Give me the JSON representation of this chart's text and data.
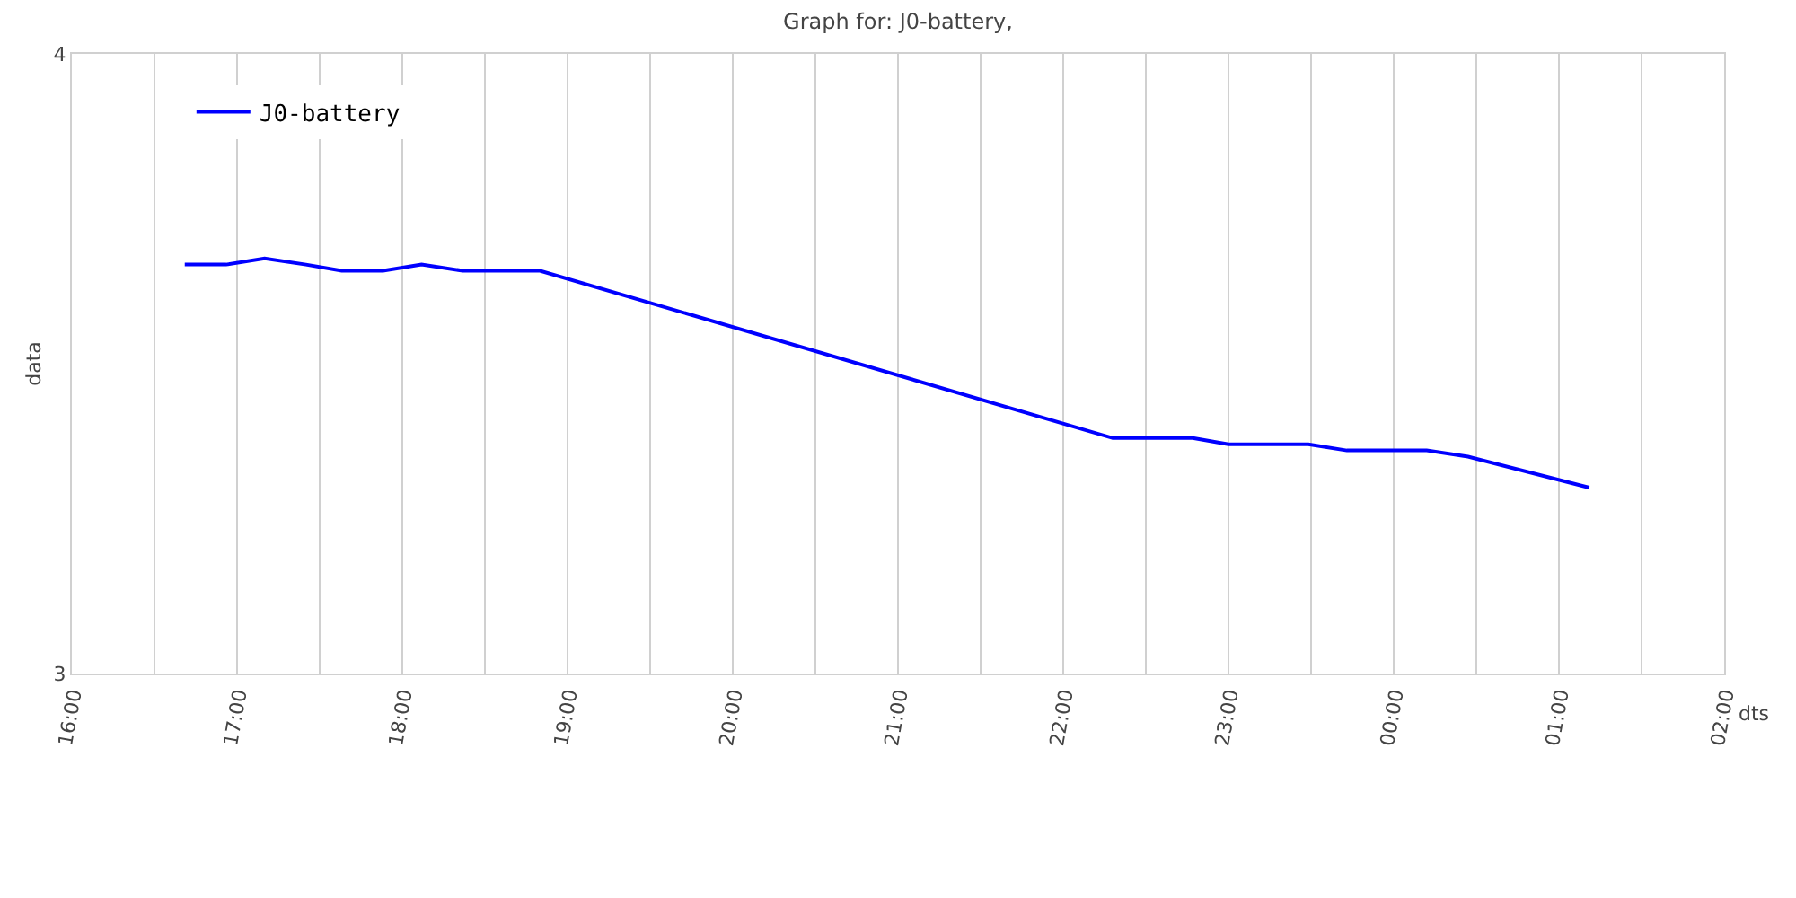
{
  "chart_data": {
    "type": "line",
    "title": "Graph for: J0-battery,",
    "xlabel": "dts",
    "ylabel": "data",
    "x": [
      "--01-01T16:41",
      "--01-01T16:56",
      "--01-01T17:10",
      "--01-01T17:25",
      "--01-01T17:38",
      "--01-01T17:53",
      "--01-01T18:07",
      "--01-01T18:22",
      "--01-01T18:50",
      "--01-01T22:18",
      "--01-01T22:47",
      "--01-01T23:00",
      "--01-01T23:29",
      "--01-01T23:43",
      "--01-02T00:12",
      "--01-02T00:27",
      "--01-02T01:11"
    ],
    "series": [
      {
        "name": "J0-battery",
        "color": "#0000ff",
        "values": [
          3.66,
          3.66,
          3.67,
          3.66,
          3.65,
          3.65,
          3.66,
          3.65,
          3.65,
          3.38,
          3.38,
          3.37,
          3.37,
          3.36,
          3.36,
          3.35,
          3.3
        ]
      }
    ],
    "xlim": [
      "--01-01T16:00",
      "--01-02T02:00"
    ],
    "xticks": [
      {
        "value": "--01-01T16:00",
        "label": "16:00"
      },
      {
        "value": "--01-01T16:30",
        "label": null
      },
      {
        "value": "--01-01T17:00",
        "label": "17:00"
      },
      {
        "value": "--01-01T17:30",
        "label": null
      },
      {
        "value": "--01-01T18:00",
        "label": "18:00"
      },
      {
        "value": "--01-01T18:30",
        "label": null
      },
      {
        "value": "--01-01T19:00",
        "label": "19:00"
      },
      {
        "value": "--01-01T19:30",
        "label": null
      },
      {
        "value": "--01-01T20:00",
        "label": "20:00"
      },
      {
        "value": "--01-01T20:30",
        "label": null
      },
      {
        "value": "--01-01T21:00",
        "label": "21:00"
      },
      {
        "value": "--01-01T21:30",
        "label": null
      },
      {
        "value": "--01-01T22:00",
        "label": "22:00"
      },
      {
        "value": "--01-01T22:30",
        "label": null
      },
      {
        "value": "--01-01T23:00",
        "label": "23:00"
      },
      {
        "value": "--01-01T23:30",
        "label": null
      },
      {
        "value": "--01-02T00:00",
        "label": "00:00"
      },
      {
        "value": "--01-02T00:30",
        "label": null
      },
      {
        "value": "--01-02T01:00",
        "label": "01:00"
      },
      {
        "value": "--01-02T01:30",
        "label": null
      },
      {
        "value": "--01-02T02:00",
        "label": "02:00"
      }
    ],
    "ylim": [
      3,
      4
    ],
    "yticks": [
      3,
      4
    ],
    "grid": "x",
    "legend": "top left",
    "marker": "none",
    "line_style": "solid"
  }
}
